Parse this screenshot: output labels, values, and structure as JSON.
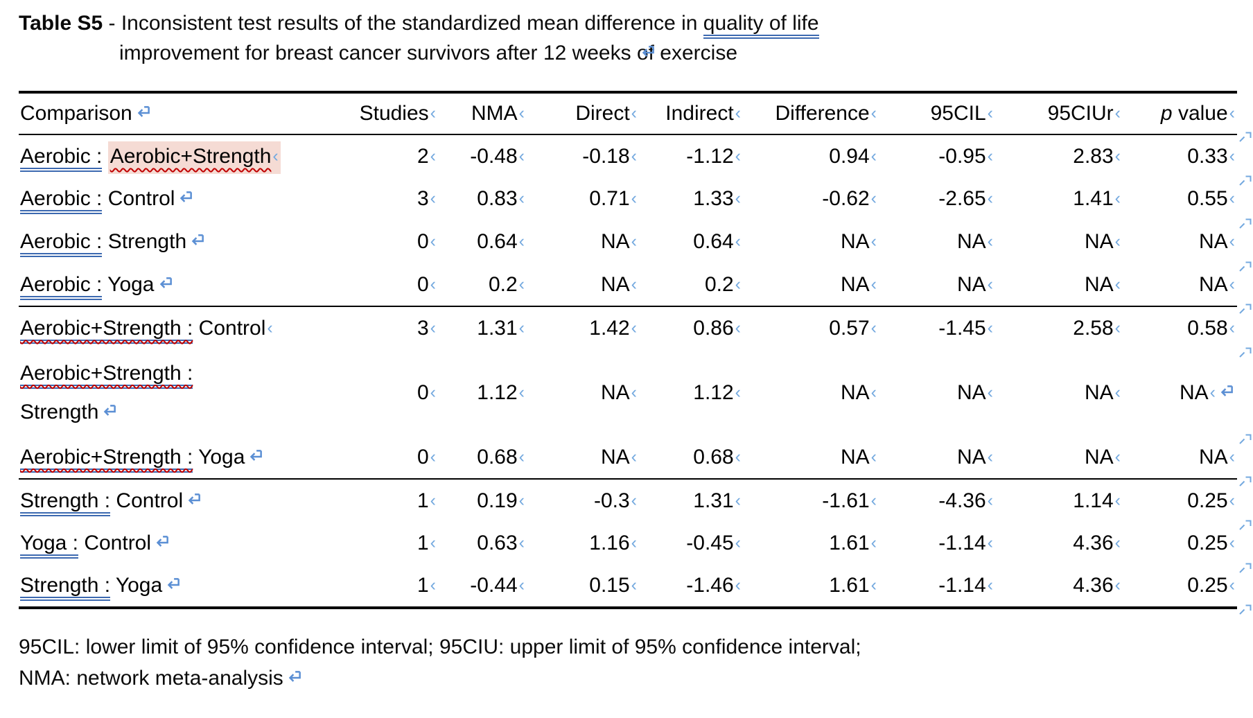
{
  "title": {
    "label_bold": "Table S5",
    "separator": " - ",
    "text_before_underline": "Inconsistent test results of the standardized mean difference in ",
    "underlined_phrase": "quality of life",
    "line2": "improvement for breast cancer survivors after 12 weeks of exercise"
  },
  "icons": {
    "line-break-mark": "↵",
    "end-of-cell-mark": "‹",
    "end-of-row-mark": "⤶"
  },
  "colors": {
    "format_mark_blue": "#5b8fd4",
    "cell_mark_blue": "#74a9df",
    "underline_blue": "#3c69b0",
    "squiggle_red": "#c00000",
    "highlight_pink": "#f5dbd4",
    "rule_black": "#000000"
  },
  "table": {
    "headers": {
      "comparison": "Comparison",
      "studies": "Studies",
      "nma": "NMA",
      "direct": "Direct",
      "indirect": "Indirect",
      "difference": "Difference",
      "cil": "95CIL",
      "ciur": "95CIUr",
      "p_symbol": "p",
      "p_rest": " value"
    },
    "rows": [
      {
        "comp_underlined": "Aerobic :",
        "comp_plain": " ",
        "comp_highlighted": "Aerobic+Strength",
        "marker": "cell",
        "vals": [
          "2",
          "-0.48",
          "-0.18",
          "-1.12",
          "0.94",
          "-0.95",
          "2.83",
          "0.33"
        ]
      },
      {
        "comp_underlined": "Aerobic :",
        "comp_plain": " Control",
        "marker": "break",
        "vals": [
          "3",
          "0.83",
          "0.71",
          "1.33",
          "-0.62",
          "-2.65",
          "1.41",
          "0.55"
        ]
      },
      {
        "comp_underlined": "Aerobic :",
        "comp_plain": " Strength",
        "marker": "break",
        "vals": [
          "0",
          "0.64",
          "NA",
          "0.64",
          "NA",
          "NA",
          "NA",
          "NA"
        ]
      },
      {
        "comp_underlined": "Aerobic :",
        "comp_plain": " Yoga",
        "marker": "break",
        "section_end": true,
        "vals": [
          "0",
          "0.2",
          "NA",
          "0.2",
          "NA",
          "NA",
          "NA",
          "NA"
        ]
      },
      {
        "comp_underlined": "Aerobic+Strength :",
        "comp_plain": " Control",
        "marker": "cell",
        "squiggle_on_underlined": true,
        "vals": [
          "3",
          "1.31",
          "1.42",
          "0.86",
          "0.57",
          "-1.45",
          "2.58",
          "0.58"
        ]
      },
      {
        "comp_underlined": "Aerobic+Strength :",
        "comp_line2": "Strength",
        "marker": "break",
        "squiggle_on_underlined": true,
        "tall": true,
        "extra_break_after_last_value": true,
        "vals": [
          "0",
          "1.12",
          "NA",
          "1.12",
          "NA",
          "NA",
          "NA",
          "NA"
        ]
      },
      {
        "comp_underlined": "Aerobic+Strength :",
        "comp_plain": " Yoga",
        "marker": "break",
        "squiggle_on_underlined": true,
        "section_end": true,
        "vals": [
          "0",
          "0.68",
          "NA",
          "0.68",
          "NA",
          "NA",
          "NA",
          "NA"
        ]
      },
      {
        "comp_underlined": "Strength :",
        "comp_plain": " Control",
        "marker": "break",
        "vals": [
          "1",
          "0.19",
          "-0.3",
          "1.31",
          "-1.61",
          "-4.36",
          "1.14",
          "0.25"
        ]
      },
      {
        "comp_underlined": "Yoga :",
        "comp_plain": " Control",
        "marker": "break",
        "vals": [
          "1",
          "0.63",
          "1.16",
          "-0.45",
          "1.61",
          "-1.14",
          "4.36",
          "0.25"
        ]
      },
      {
        "comp_underlined": "Strength :",
        "comp_plain": " Yoga",
        "marker": "break",
        "vals": [
          "1",
          "-0.44",
          "0.15",
          "-1.46",
          "1.61",
          "-1.14",
          "4.36",
          "0.25"
        ]
      }
    ]
  },
  "footnote": {
    "line1": "95CIL: lower limit of 95% confidence interval; 95CIU: upper limit of 95% confidence interval;",
    "line2": "NMA: network meta-analysis"
  }
}
